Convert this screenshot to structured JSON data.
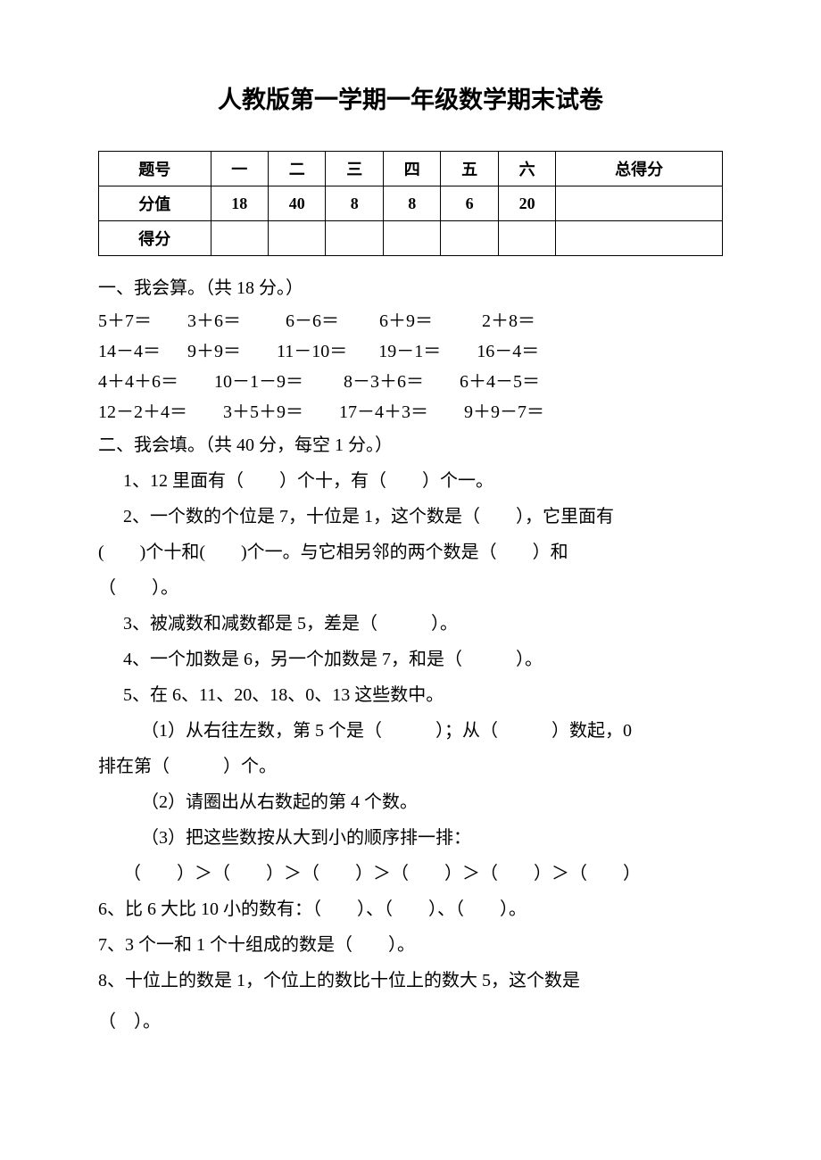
{
  "title": "人教版第一学期一年级数学期末试卷",
  "table": {
    "headers": [
      "题号",
      "一",
      "二",
      "三",
      "四",
      "五",
      "六",
      "总得分"
    ],
    "row1_label": "分值",
    "row1_values": [
      "18",
      "40",
      "8",
      "8",
      "6",
      "20",
      ""
    ],
    "row2_label": "得分",
    "row2_values": [
      "",
      "",
      "",
      "",
      "",
      "",
      ""
    ]
  },
  "section1": {
    "heading": "一、我会算。（共 18 分。）",
    "rows": [
      "5＋7＝        3＋6＝          6－6＝         6＋9＝           2＋8＝",
      "14－4＝      9＋9＝        11－10＝       19－1＝        16－4＝",
      "4＋4＋6＝        10－1－9＝         8－3＋6＝        6＋4－5＝",
      "12－2＋4＝        3＋5＋9＝        17－4＋3＝        9＋9－7＝"
    ]
  },
  "section2": {
    "heading": "二、我会填。（共 40 分，每空 1 分。）",
    "q1": "1、12 里面有（　　）个十，有（　　）个一。",
    "q2_l1": "2、一个数的个位是 7，十位是 1，这个数是（　　），它里面有",
    "q2_l2": "(　　)个十和(　　)个一。与它相另邻的两个数是（　　）和",
    "q2_l3": "（　　）。",
    "q3": "3、被减数和减数都是 5，差是（　　　）。",
    "q4": "4、一个加数是 6，另一个加数是 7，和是（　　　）。",
    "q5": "5、在 6、11、20、18、0、13 这些数中。",
    "q5_1a": "（1）从右往左数，第 5 个是（　　　）；从（　　　）数起，0",
    "q5_1b": "排在第（　　　）个。",
    "q5_2": "（2）请圈出从右数起的第 4 个数。",
    "q5_3": "（3）把这些数按从大到小的顺序排一排：",
    "q5_order": "（　　）＞（　　）＞（　　）＞（　　）＞（　　）＞（　　）",
    "q6": "6、比 6 大比 10 小的数有：（　　）、（　　）、（　　）。",
    "q7": "7、3 个一和 1 个十组成的数是（　　）。",
    "q8_l1": "8、十位上的数是 1，个位上的数比十位上的数大 5，这个数是",
    "q8_l2": "（　）。"
  },
  "style": {
    "background_color": "#ffffff",
    "text_color": "#000000",
    "title_fontsize": 27,
    "body_fontsize": 20,
    "table_border_color": "#000000"
  }
}
